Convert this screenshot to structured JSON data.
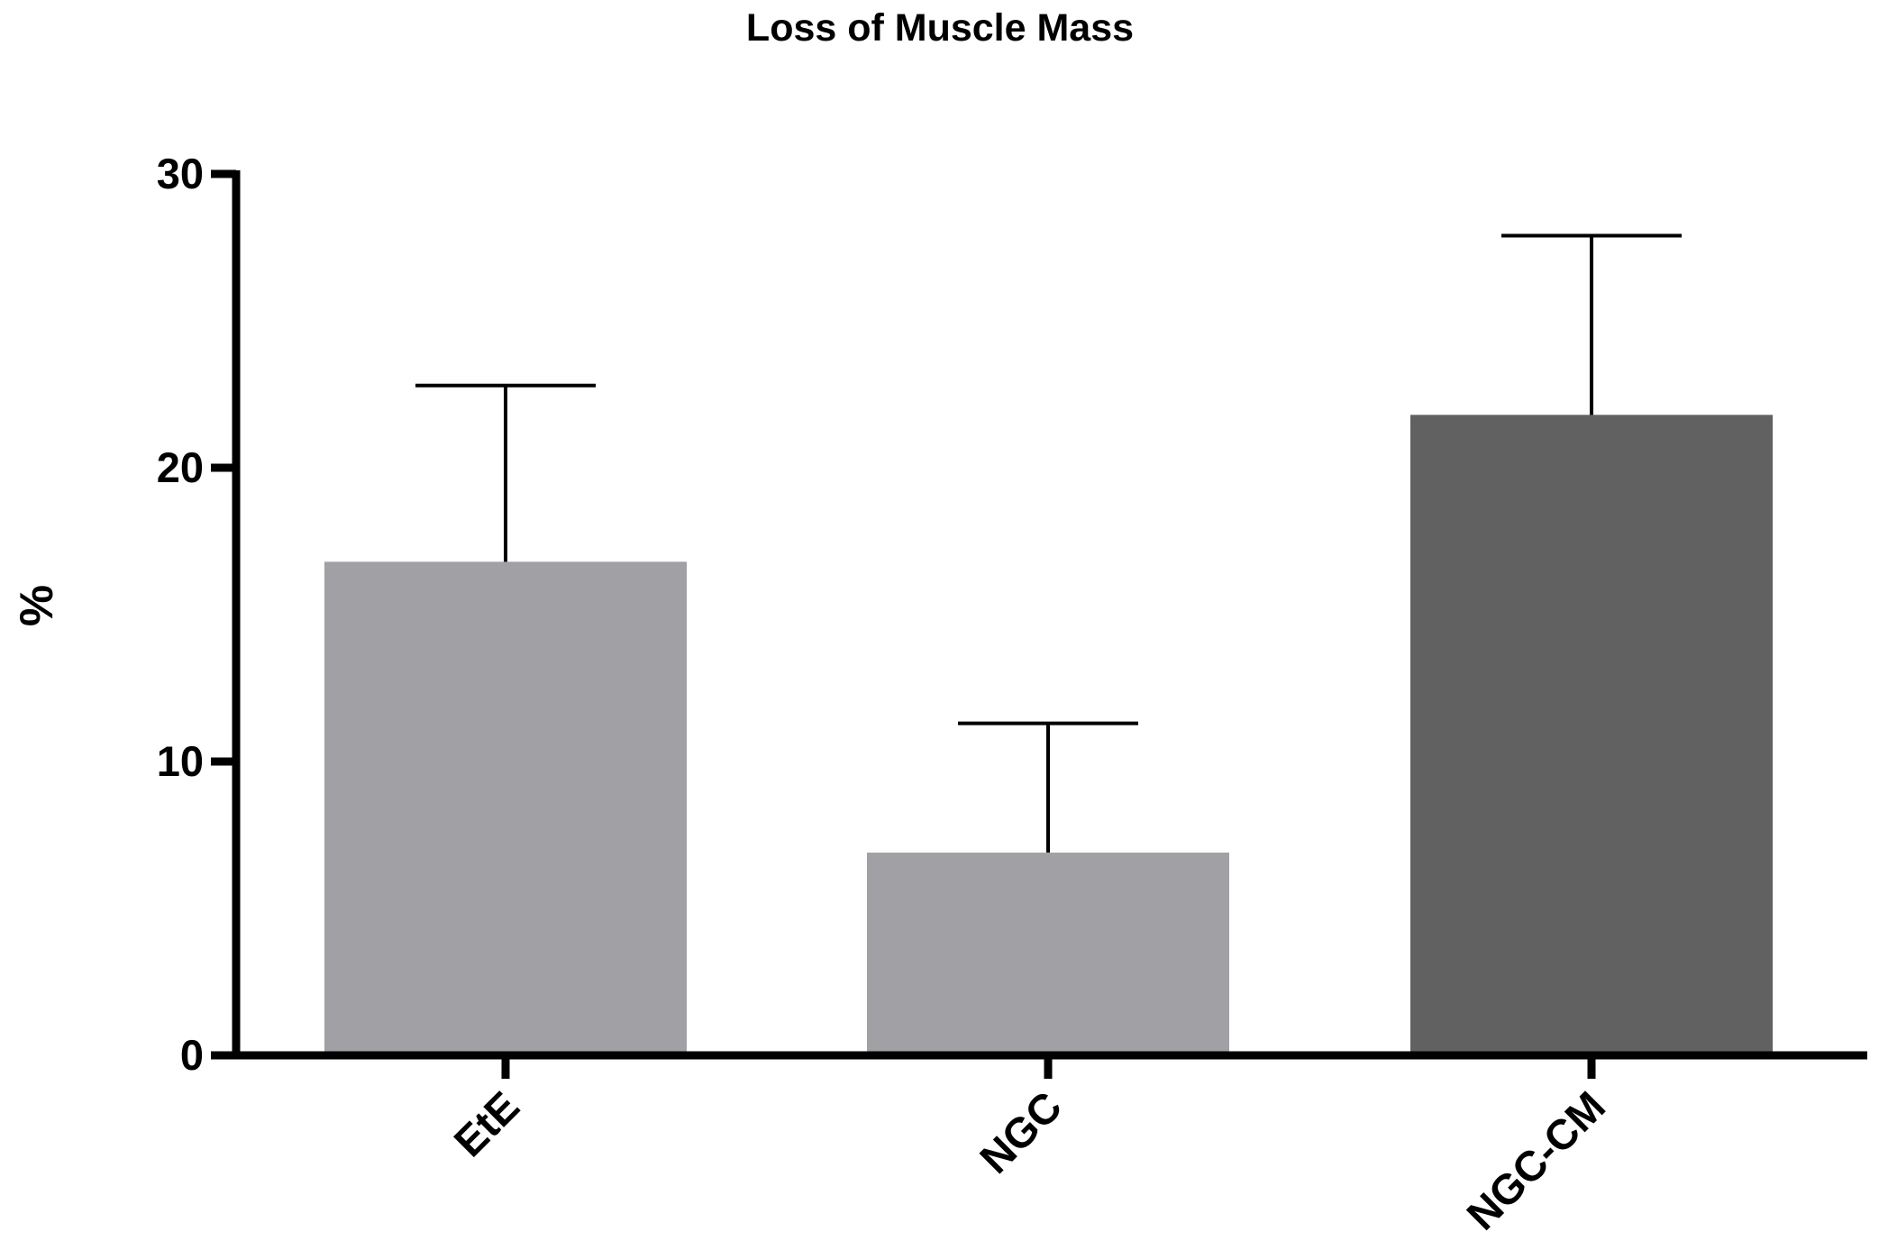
{
  "chart_data": {
    "type": "bar",
    "title": "Loss of Muscle Mass",
    "xlabel": "",
    "ylabel": "%",
    "ylim": [
      0,
      30
    ],
    "yticks": [
      0,
      10,
      20,
      30
    ],
    "categories": [
      "EtE",
      "NGC",
      "NGC-CM"
    ],
    "values": [
      16.8,
      6.9,
      21.8
    ],
    "error_upper": [
      22.8,
      11.3,
      27.9
    ],
    "bar_colors": [
      "#a1a0a4",
      "#a1a0a4",
      "#616161"
    ],
    "grid": false,
    "legend": "none"
  }
}
